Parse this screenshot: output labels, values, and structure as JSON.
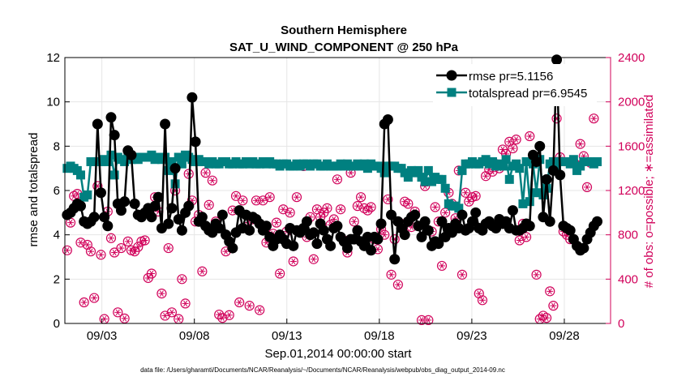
{
  "chart_data": {
    "type": "line",
    "title": "Southern Hemisphere",
    "subtitle": "SAT_U_WIND_COMPONENT @ 250 hPa",
    "xlabel": "Sep.01,2014 00:00:00 start",
    "ylabel": "rmse and totalspread",
    "y2label": "# of obs: o=possible; ∗=assimilated",
    "footnote": "data file: /Users/gharamti/Documents/NCAR/Reanalysis/~/Documents/NCAR/Reanalysis/webpub/obs_diag_output_2014-09.nc",
    "xlim": [
      1.0,
      30.5
    ],
    "ylim": [
      0,
      12
    ],
    "y2lim": [
      0,
      2400
    ],
    "xticks": [
      3,
      8,
      13,
      18,
      23,
      28
    ],
    "xtick_labels": [
      "09/03",
      "09/08",
      "09/13",
      "09/18",
      "09/23",
      "09/28"
    ],
    "yticks": [
      0,
      2,
      4,
      6,
      8,
      10,
      12
    ],
    "y2ticks": [
      0,
      400,
      800,
      1200,
      1600,
      2000,
      2400
    ],
    "colors": {
      "rmse": "#000000",
      "spread": "#008080",
      "obs": "#d1005a",
      "grid": "#e6e6e6",
      "axis": "#000000"
    },
    "series": [
      {
        "name": "rmse",
        "legend_label": "rmse pr=5.1156",
        "values": [
          4.9,
          5.0,
          5.2,
          5.4,
          5.3,
          4.6,
          4.5,
          4.6,
          4.8,
          9.0,
          5.9,
          4.8,
          4.4,
          9.3,
          8.5,
          5.4,
          5.1,
          5.5,
          7.8,
          7.6,
          5.4,
          4.9,
          4.8,
          5.0,
          5.2,
          4.8,
          5.3,
          5.7,
          4.3,
          9.0,
          4.5,
          5.2,
          7.0,
          4.7,
          4.2,
          5.0,
          5.3,
          10.2,
          8.2,
          4.6,
          4.8,
          4.4,
          4.2,
          4.1,
          4.5,
          4.3,
          4.9,
          4.0,
          3.7,
          3.4,
          4.1,
          5.1,
          4.3,
          4.9,
          4.2,
          4.8,
          4.7,
          4.5,
          4.2,
          4.4,
          3.9,
          3.5,
          3.8,
          4.0,
          3.8,
          3.6,
          4.3,
          3.5,
          4.2,
          4.1,
          4.3,
          4.6,
          4.0,
          4.1,
          3.6,
          4.5,
          4.2,
          3.8,
          3.5,
          4.3,
          4.4,
          3.9,
          3.7,
          3.4,
          3.8,
          3.8,
          4.2,
          3.7,
          3.5,
          3.9,
          3.3,
          3.9,
          3.8,
          4.5,
          9.0,
          9.2,
          4.9,
          2.9,
          4.6,
          4.3,
          4.0,
          4.6,
          4.8,
          4.9,
          4.4,
          3.9,
          4.6,
          4.2,
          3.5,
          3.7,
          3.6,
          4.6,
          3.9,
          4.3,
          4.1,
          4.5,
          4.3,
          4.9,
          4.2,
          4.3,
          4.6,
          5.0,
          4.3,
          4.2,
          4.5,
          4.6,
          4.4,
          4.3,
          4.7,
          4.5,
          4.6,
          4.3,
          5.1,
          4.2,
          4.2,
          4.3,
          4.5,
          4.4,
          7.6,
          7.3,
          8.0,
          4.8,
          6.5,
          4.6,
          6.9,
          11.9,
          6.7,
          4.4,
          4.3,
          4.2,
          3.8,
          3.5,
          3.3,
          3.4,
          3.8,
          4.1,
          4.4,
          4.6
        ]
      },
      {
        "name": "totalspread",
        "legend_label": "totalspread pr=6.9545",
        "values": [
          7.0,
          7.1,
          7.0,
          6.9,
          6.7,
          5.7,
          5.8,
          7.3,
          7.3,
          7.3,
          7.3,
          7.4,
          7.3,
          7.6,
          6.7,
          7.5,
          7.4,
          7.3,
          7.5,
          7.4,
          7.5,
          7.4,
          7.5,
          7.5,
          7.5,
          7.6,
          7.4,
          7.5,
          7.4,
          7.5,
          6.9,
          7.3,
          6.3,
          7.5,
          7.2,
          7.6,
          7.5,
          7.4,
          7.3,
          7.4,
          7.3,
          7.3,
          7.2,
          7.3,
          7.2,
          7.2,
          7.3,
          7.3,
          7.2,
          7.2,
          7.3,
          7.2,
          7.2,
          7.3,
          7.2,
          7.3,
          7.2,
          7.2,
          7.3,
          7.2,
          7.3,
          7.2,
          7.2,
          7.1,
          7.2,
          7.2,
          7.1,
          7.1,
          7.2,
          7.1,
          7.2,
          7.2,
          7.1,
          7.2,
          7.2,
          7.1,
          7.1,
          7.2,
          7.1,
          7.1,
          7.1,
          7.2,
          7.1,
          7.2,
          7.1,
          7.1,
          7.2,
          7.1,
          7.2,
          7.0,
          7.2,
          7.1,
          7.1,
          7.0,
          6.8,
          7.1,
          7.1,
          7.1,
          7.0,
          7.0,
          6.8,
          6.6,
          6.9,
          6.8,
          6.9,
          6.6,
          6.4,
          6.9,
          6.4,
          6.6,
          6.5,
          6.5,
          6.1,
          5.4,
          5.3,
          5.3,
          5.2,
          6.9,
          7.2,
          7.2,
          7.3,
          7.2,
          7.2,
          7.3,
          7.4,
          7.2,
          7.3,
          7.1,
          7.2,
          7.1,
          7.4,
          6.5,
          7.1,
          7.2,
          7.0,
          5.4,
          7.3,
          5.5,
          7.2,
          5.9,
          7.4,
          5.8,
          6.1,
          7.2,
          7.3,
          7.1,
          7.3,
          7.3,
          7.3,
          7.2,
          7.4,
          6.9,
          7.1,
          7.3,
          7.3,
          7.3,
          7.2,
          7.3
        ]
      },
      {
        "name": "obs_counts",
        "legend_label": "",
        "values": [
          660,
          910,
          1150,
          1170,
          730,
          190,
          710,
          650,
          230,
          1240,
          620,
          40,
          1010,
          770,
          640,
          100,
          680,
          45,
          740,
          660,
          650,
          690,
          740,
          750,
          410,
          450,
          1140,
          1010,
          270,
          70,
          680,
          100,
          1200,
          40,
          400,
          180,
          1350,
          1110,
          920,
          980,
          470,
          1360,
          1070,
          1290,
          920,
          80,
          50,
          650,
          75,
          1020,
          1150,
          190,
          1110,
          870,
          160,
          940,
          1110,
          120,
          1110,
          730,
          1140,
          810,
          910,
          450,
          1030,
          830,
          1000,
          560,
          1140,
          820,
          1420,
          780,
          960,
          580,
          1030,
          960,
          1000,
          1040,
          890,
          940,
          1300,
          1030,
          750,
          640,
          1360,
          920,
          1060,
          1140,
          1040,
          1020,
          1050,
          760,
          670,
          850,
          800,
          1120,
          440,
          760,
          350,
          900,
          1100,
          1080,
          870,
          1010,
          880,
          30,
          1240,
          30,
          830,
          1050,
          920,
          520,
          1000,
          1180,
          1080,
          950,
          1380,
          440,
          1180,
          1100,
          1140,
          1150,
          270,
          210,
          1330,
          1390,
          1370,
          1440,
          1400,
          1570,
          1530,
          1640,
          1580,
          1660,
          750,
          900,
          780,
          1690,
          2030,
          440,
          40,
          70,
          50,
          290,
          160,
          1850,
          1500,
          830,
          800,
          760,
          1460,
          1430,
          1620,
          1510,
          1230,
          1450,
          1850
        ]
      }
    ]
  }
}
